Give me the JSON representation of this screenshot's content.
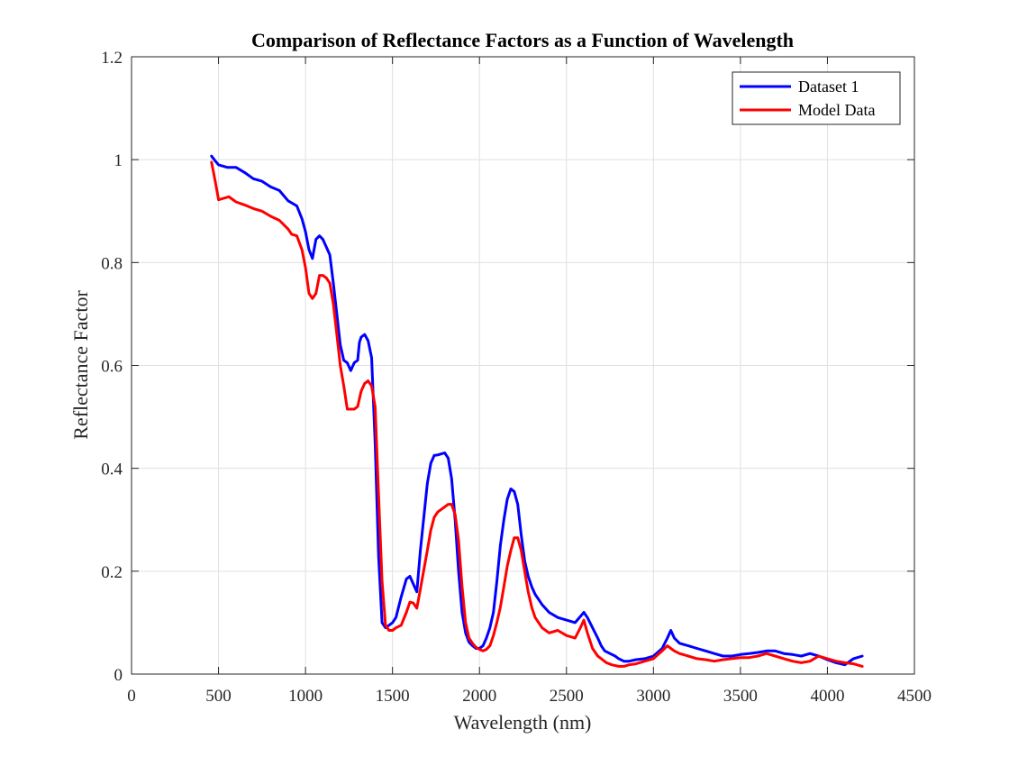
{
  "chart_data": {
    "type": "line",
    "title": "Comparison of Reflectance Factors as a Function of Wavelength",
    "xlabel": "Wavelength (nm)",
    "ylabel": "Reflectance Factor",
    "xlim": [
      0,
      4500
    ],
    "ylim": [
      0,
      1.2
    ],
    "xticks": [
      0,
      500,
      1000,
      1500,
      2000,
      2500,
      3000,
      3500,
      4000,
      4500
    ],
    "yticks": [
      0,
      0.2,
      0.4,
      0.6,
      0.8,
      1,
      1.2
    ],
    "xtick_labels": [
      "0",
      "500",
      "1000",
      "1500",
      "2000",
      "2500",
      "3000",
      "3500",
      "4000",
      "4500"
    ],
    "ytick_labels": [
      "0",
      "0.2",
      "0.4",
      "0.6",
      "0.8",
      "1",
      "1.2"
    ],
    "grid": true,
    "legend_position": "top-right",
    "series": [
      {
        "name": "Dataset 1",
        "color": "#0000ff",
        "x": [
          460,
          480,
          500,
          550,
          600,
          650,
          700,
          750,
          800,
          850,
          900,
          950,
          980,
          1000,
          1020,
          1040,
          1060,
          1080,
          1100,
          1120,
          1140,
          1160,
          1180,
          1200,
          1220,
          1240,
          1260,
          1280,
          1300,
          1310,
          1320,
          1340,
          1360,
          1380,
          1400,
          1420,
          1440,
          1460,
          1480,
          1500,
          1520,
          1550,
          1580,
          1600,
          1620,
          1640,
          1660,
          1700,
          1720,
          1740,
          1760,
          1780,
          1800,
          1820,
          1840,
          1860,
          1880,
          1900,
          1920,
          1940,
          1960,
          1980,
          2000,
          2020,
          2040,
          2060,
          2080,
          2100,
          2120,
          2140,
          2160,
          2180,
          2200,
          2220,
          2240,
          2260,
          2280,
          2300,
          2320,
          2340,
          2360,
          2400,
          2450,
          2500,
          2550,
          2600,
          2620,
          2650,
          2680,
          2700,
          2720,
          2750,
          2780,
          2800,
          2830,
          2860,
          2900,
          2950,
          3000,
          3050,
          3080,
          3100,
          3120,
          3150,
          3200,
          3250,
          3300,
          3350,
          3400,
          3450,
          3500,
          3550,
          3600,
          3650,
          3700,
          3750,
          3800,
          3850,
          3900,
          3950,
          4000,
          4050,
          4100,
          4150,
          4200
        ],
        "y": [
          1.007,
          0.998,
          0.99,
          0.985,
          0.985,
          0.975,
          0.963,
          0.958,
          0.947,
          0.94,
          0.92,
          0.91,
          0.885,
          0.86,
          0.825,
          0.808,
          0.845,
          0.852,
          0.845,
          0.83,
          0.815,
          0.76,
          0.7,
          0.64,
          0.61,
          0.605,
          0.59,
          0.605,
          0.61,
          0.645,
          0.655,
          0.66,
          0.648,
          0.615,
          0.45,
          0.23,
          0.1,
          0.09,
          0.095,
          0.1,
          0.11,
          0.15,
          0.185,
          0.19,
          0.175,
          0.16,
          0.24,
          0.37,
          0.41,
          0.425,
          0.426,
          0.428,
          0.43,
          0.42,
          0.38,
          0.3,
          0.2,
          0.12,
          0.08,
          0.062,
          0.055,
          0.05,
          0.05,
          0.055,
          0.07,
          0.09,
          0.12,
          0.18,
          0.25,
          0.3,
          0.34,
          0.36,
          0.355,
          0.33,
          0.27,
          0.22,
          0.19,
          0.17,
          0.155,
          0.145,
          0.135,
          0.12,
          0.11,
          0.105,
          0.1,
          0.12,
          0.11,
          0.09,
          0.07,
          0.055,
          0.045,
          0.04,
          0.035,
          0.03,
          0.025,
          0.025,
          0.028,
          0.03,
          0.035,
          0.05,
          0.07,
          0.085,
          0.07,
          0.06,
          0.055,
          0.05,
          0.045,
          0.04,
          0.035,
          0.035,
          0.038,
          0.04,
          0.042,
          0.045,
          0.045,
          0.04,
          0.038,
          0.035,
          0.04,
          0.035,
          0.028,
          0.022,
          0.018,
          0.03,
          0.035
        ]
      },
      {
        "name": "Model Data",
        "color": "#ff0000",
        "x": [
          460,
          480,
          500,
          530,
          560,
          600,
          650,
          700,
          750,
          800,
          850,
          900,
          920,
          950,
          980,
          1000,
          1020,
          1040,
          1060,
          1080,
          1100,
          1120,
          1140,
          1160,
          1180,
          1200,
          1220,
          1240,
          1260,
          1280,
          1300,
          1320,
          1340,
          1360,
          1380,
          1400,
          1420,
          1440,
          1460,
          1480,
          1500,
          1520,
          1550,
          1580,
          1600,
          1620,
          1640,
          1660,
          1700,
          1720,
          1740,
          1760,
          1780,
          1800,
          1820,
          1840,
          1860,
          1880,
          1900,
          1920,
          1940,
          1960,
          1980,
          2000,
          2020,
          2040,
          2060,
          2080,
          2100,
          2120,
          2140,
          2160,
          2180,
          2200,
          2220,
          2240,
          2260,
          2280,
          2300,
          2320,
          2340,
          2360,
          2400,
          2450,
          2500,
          2550,
          2580,
          2600,
          2620,
          2650,
          2680,
          2700,
          2730,
          2760,
          2800,
          2830,
          2860,
          2900,
          2950,
          3000,
          3050,
          3080,
          3100,
          3120,
          3150,
          3200,
          3250,
          3300,
          3350,
          3400,
          3450,
          3500,
          3550,
          3600,
          3650,
          3700,
          3750,
          3800,
          3850,
          3900,
          3950,
          4000,
          4050,
          4100,
          4150,
          4200
        ],
        "y": [
          0.995,
          0.96,
          0.922,
          0.925,
          0.928,
          0.918,
          0.912,
          0.905,
          0.9,
          0.89,
          0.882,
          0.865,
          0.855,
          0.852,
          0.825,
          0.79,
          0.74,
          0.73,
          0.74,
          0.775,
          0.775,
          0.77,
          0.76,
          0.72,
          0.66,
          0.6,
          0.56,
          0.515,
          0.515,
          0.515,
          0.52,
          0.55,
          0.565,
          0.57,
          0.56,
          0.52,
          0.35,
          0.18,
          0.095,
          0.085,
          0.085,
          0.09,
          0.095,
          0.12,
          0.14,
          0.138,
          0.128,
          0.165,
          0.24,
          0.28,
          0.305,
          0.315,
          0.32,
          0.325,
          0.33,
          0.33,
          0.31,
          0.26,
          0.17,
          0.1,
          0.07,
          0.06,
          0.052,
          0.048,
          0.045,
          0.048,
          0.055,
          0.075,
          0.1,
          0.13,
          0.17,
          0.21,
          0.24,
          0.265,
          0.265,
          0.24,
          0.2,
          0.16,
          0.13,
          0.11,
          0.1,
          0.09,
          0.08,
          0.085,
          0.075,
          0.07,
          0.09,
          0.105,
          0.08,
          0.05,
          0.035,
          0.03,
          0.022,
          0.018,
          0.015,
          0.015,
          0.018,
          0.02,
          0.025,
          0.03,
          0.045,
          0.055,
          0.05,
          0.045,
          0.04,
          0.035,
          0.03,
          0.028,
          0.025,
          0.028,
          0.03,
          0.032,
          0.032,
          0.035,
          0.04,
          0.035,
          0.03,
          0.025,
          0.022,
          0.025,
          0.035,
          0.03,
          0.025,
          0.022,
          0.02,
          0.015
        ]
      }
    ]
  }
}
